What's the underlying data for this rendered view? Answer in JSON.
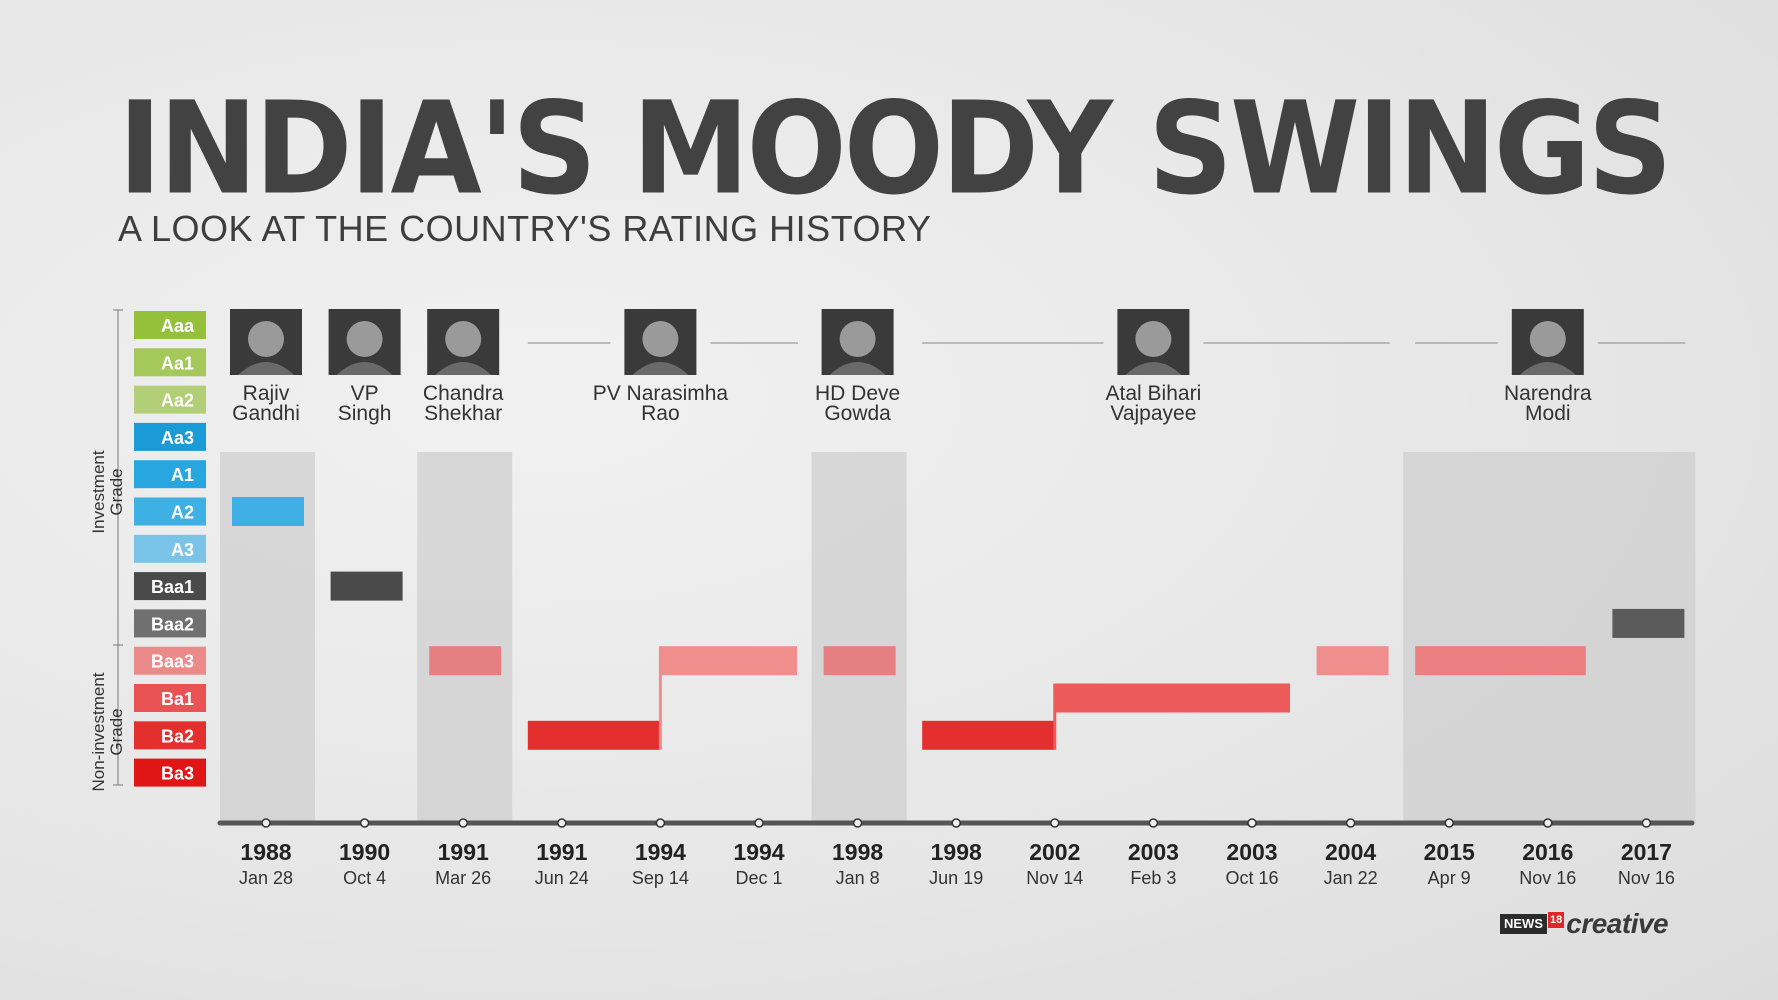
{
  "title": "INDIA'S MOODY SWINGS",
  "subtitle": "A LOOK AT THE COUNTRY'S RATING HISTORY",
  "logo": {
    "news": "NEWS",
    "eighteen": "18",
    "creative": "creative"
  },
  "grade_labels": {
    "investment": [
      "Investment",
      "Grade"
    ],
    "non_investment": [
      "Non-investment",
      "Grade"
    ]
  },
  "chart_data": {
    "type": "timeline",
    "rating_scale": [
      {
        "label": "Aaa",
        "color": "#95c13a"
      },
      {
        "label": "Aa1",
        "color": "#a5c85a"
      },
      {
        "label": "Aa2",
        "color": "#b2cf78"
      },
      {
        "label": "Aa3",
        "color": "#1b9ad8"
      },
      {
        "label": "A1",
        "color": "#28a6e0"
      },
      {
        "label": "A2",
        "color": "#3fb0e4"
      },
      {
        "label": "A3",
        "color": "#7ac4ea"
      },
      {
        "label": "Baa1",
        "color": "#4a4a4a"
      },
      {
        "label": "Baa2",
        "color": "#707070"
      },
      {
        "label": "Baa3",
        "color": "#ec8a8a"
      },
      {
        "label": "Ba1",
        "color": "#e95353"
      },
      {
        "label": "Ba2",
        "color": "#e42f2f"
      },
      {
        "label": "Ba3",
        "color": "#e01616"
      }
    ],
    "dates": [
      {
        "year": "1988",
        "day": "Jan 28"
      },
      {
        "year": "1990",
        "day": "Oct 4"
      },
      {
        "year": "1991",
        "day": "Mar 26"
      },
      {
        "year": "1991",
        "day": "Jun 24"
      },
      {
        "year": "1994",
        "day": "Sep 14"
      },
      {
        "year": "1994",
        "day": "Dec 1"
      },
      {
        "year": "1998",
        "day": "Jan 8"
      },
      {
        "year": "1998",
        "day": "Jun 19"
      },
      {
        "year": "2002",
        "day": "Nov 14"
      },
      {
        "year": "2003",
        "day": "Feb 3"
      },
      {
        "year": "2003",
        "day": "Oct 16"
      },
      {
        "year": "2004",
        "day": "Jan 22"
      },
      {
        "year": "2015",
        "day": "Apr 9"
      },
      {
        "year": "2016",
        "day": "Nov 16"
      },
      {
        "year": "2017",
        "day": "Nov 16"
      }
    ],
    "ratings": [
      {
        "from": 0,
        "to": 0,
        "rating": "A2",
        "color": "#3fb0e4"
      },
      {
        "from": 1,
        "to": 1,
        "rating": "Baa1",
        "color": "#4a4a4a"
      },
      {
        "from": 2,
        "to": 2,
        "rating": "Baa3",
        "color": "#e57f82"
      },
      {
        "from": 3,
        "to": 4,
        "rating": "Ba2",
        "color": "#e42f2f"
      },
      {
        "from": 4,
        "to": 5,
        "rating": "Baa3",
        "color": "#f08e8e"
      },
      {
        "from": 6,
        "to": 6,
        "rating": "Baa3",
        "color": "#e57f82"
      },
      {
        "from": 7,
        "to": 8,
        "rating": "Ba2",
        "color": "#e42f2f"
      },
      {
        "from": 8,
        "to": 10,
        "rating": "Ba1",
        "color": "#ec5a5a"
      },
      {
        "from": 11,
        "to": 11,
        "rating": "Baa3",
        "color": "#f08e8e"
      },
      {
        "from": 12,
        "to": 13,
        "rating": "Baa3",
        "color": "#ea7e80"
      },
      {
        "from": 14,
        "to": 14,
        "rating": "Baa2",
        "color": "#5b5b5b"
      }
    ],
    "leaders": [
      {
        "name": [
          "Rajiv",
          "Gandhi"
        ],
        "from": 0,
        "to": 0,
        "shaded": true
      },
      {
        "name": [
          "VP",
          "Singh"
        ],
        "from": 1,
        "to": 1,
        "shaded": false
      },
      {
        "name": [
          "Chandra",
          "Shekhar"
        ],
        "from": 2,
        "to": 2,
        "shaded": true
      },
      {
        "name": [
          "PV Narasimha",
          "Rao"
        ],
        "from": 3,
        "to": 5,
        "shaded": false
      },
      {
        "name": [
          "HD Deve",
          "Gowda"
        ],
        "from": 6,
        "to": 6,
        "shaded": true
      },
      {
        "name": [
          "Atal Bihari",
          "Vajpayee"
        ],
        "from": 7,
        "to": 11,
        "shaded": false
      },
      {
        "name": [
          "Narendra",
          "Modi"
        ],
        "from": 12,
        "to": 14,
        "shaded": true
      }
    ]
  }
}
